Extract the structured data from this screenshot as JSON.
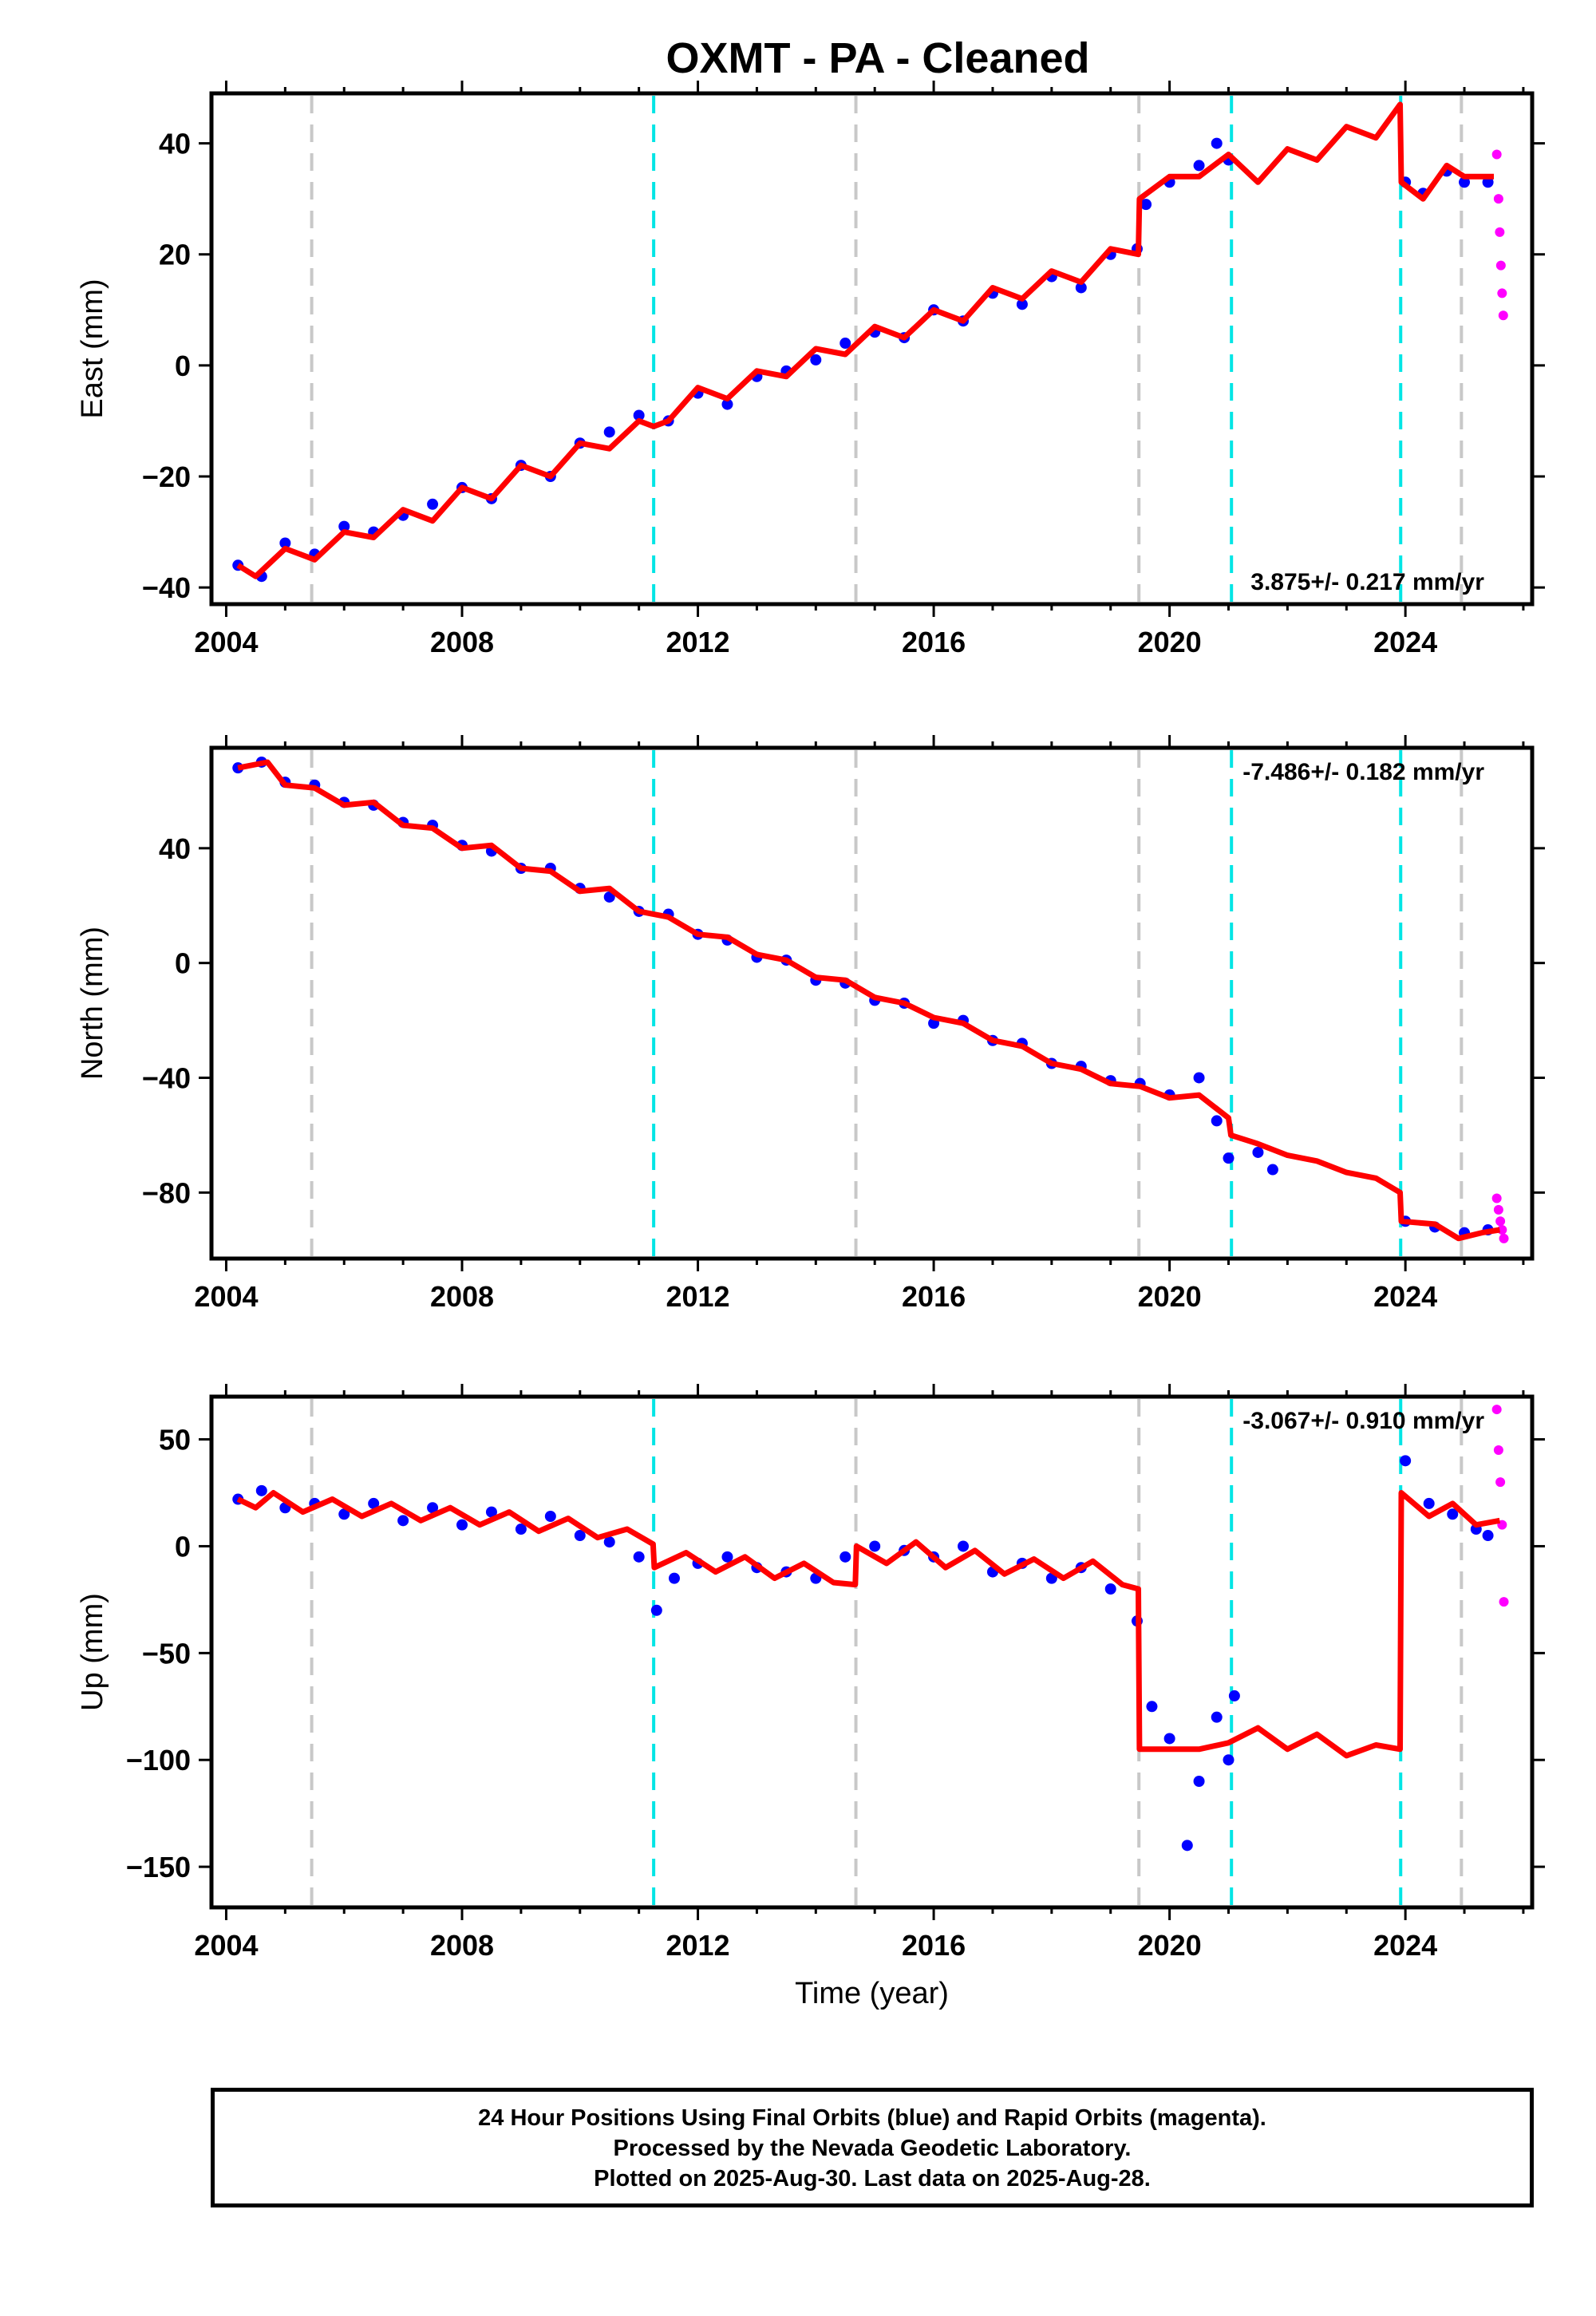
{
  "title": "OXMT  - PA - Cleaned",
  "x_axis": {
    "label": "Time (year)",
    "ticks": [
      2004,
      2008,
      2012,
      2016,
      2020,
      2024
    ],
    "range": [
      2003.75,
      2026.15
    ]
  },
  "colors": {
    "final_orbits": "#0000ff",
    "rapid_orbits": "#ff00ff",
    "model": "#ff0000",
    "equipment_change": "#c8c8c8",
    "earthquake": "#00e5e5"
  },
  "event_lines": [
    {
      "year": 2005.45,
      "kind": "equipment_change"
    },
    {
      "year": 2011.25,
      "kind": "earthquake"
    },
    {
      "year": 2014.68,
      "kind": "equipment_change"
    },
    {
      "year": 2019.48,
      "kind": "equipment_change"
    },
    {
      "year": 2021.05,
      "kind": "earthquake"
    },
    {
      "year": 2023.92,
      "kind": "earthquake"
    },
    {
      "year": 2024.95,
      "kind": "equipment_change"
    }
  ],
  "chart_data": [
    {
      "type": "scatter",
      "ylabel": "East (mm)",
      "ylim": [
        -43,
        49
      ],
      "yticks": [
        -40,
        -20,
        0,
        20,
        40
      ],
      "rate_text": "3.875+/- 0.217 mm/yr",
      "rate_position": "bottom-right",
      "series": [
        {
          "name": "Final Orbits",
          "type": "scatter",
          "role": "final_orbits",
          "x": [
            2004.2,
            2004.6,
            2005.0,
            2005.5,
            2006.0,
            2006.5,
            2007.0,
            2007.5,
            2008.0,
            2008.5,
            2009.0,
            2009.5,
            2010.0,
            2010.5,
            2011.0,
            2011.5,
            2012.0,
            2012.5,
            2013.0,
            2013.5,
            2014.0,
            2014.5,
            2015.0,
            2015.5,
            2016.0,
            2016.5,
            2017.0,
            2017.5,
            2018.0,
            2018.5,
            2019.0,
            2019.45,
            2019.6,
            2020.0,
            2020.5,
            2020.8,
            2021.0,
            2024.0,
            2024.3,
            2024.7,
            2025.0,
            2025.4
          ],
          "y": [
            -36,
            -38,
            -32,
            -34,
            -29,
            -30,
            -27,
            -25,
            -22,
            -24,
            -18,
            -20,
            -14,
            -12,
            -9,
            -10,
            -5,
            -7,
            -2,
            -1,
            1,
            4,
            6,
            5,
            10,
            8,
            13,
            11,
            16,
            14,
            20,
            21,
            29,
            33,
            36,
            40,
            37,
            33,
            31,
            35,
            33,
            33
          ]
        },
        {
          "name": "Rapid Orbits",
          "type": "scatter",
          "role": "rapid_orbits",
          "x": [
            2025.55,
            2025.58,
            2025.6,
            2025.62,
            2025.64,
            2025.66
          ],
          "y": [
            38,
            30,
            24,
            18,
            13,
            9
          ]
        },
        {
          "name": "Model",
          "type": "line",
          "role": "model",
          "x": [
            2004.2,
            2004.5,
            2005.0,
            2005.5,
            2006.0,
            2006.5,
            2007.0,
            2007.5,
            2008.0,
            2008.5,
            2009.0,
            2009.5,
            2010.0,
            2010.5,
            2011.0,
            2011.25,
            2011.5,
            2012.0,
            2012.5,
            2013.0,
            2013.5,
            2014.0,
            2014.5,
            2015.0,
            2015.5,
            2016.0,
            2016.5,
            2017.0,
            2017.5,
            2018.0,
            2018.5,
            2019.0,
            2019.47,
            2019.49,
            2020.0,
            2020.5,
            2021.0,
            2021.5,
            2022.0,
            2022.5,
            2023.0,
            2023.5,
            2023.91,
            2023.93,
            2024.3,
            2024.7,
            2025.0,
            2025.5
          ],
          "y": [
            -36,
            -38,
            -33,
            -35,
            -30,
            -31,
            -26,
            -28,
            -22,
            -24,
            -18,
            -20,
            -14,
            -15,
            -10,
            -11,
            -10,
            -4,
            -6,
            -1,
            -2,
            3,
            2,
            7,
            5,
            10,
            8,
            14,
            12,
            17,
            15,
            21,
            20,
            30,
            34,
            34,
            38,
            33,
            39,
            37,
            43,
            41,
            47,
            33,
            30,
            36,
            34,
            34
          ]
        }
      ]
    },
    {
      "type": "scatter",
      "ylabel": "North (mm)",
      "ylim": [
        -103,
        75
      ],
      "yticks": [
        -80,
        -40,
        0,
        40
      ],
      "rate_text": "-7.486+/- 0.182 mm/yr",
      "rate_position": "top-right",
      "series": [
        {
          "name": "Final Orbits",
          "type": "scatter",
          "role": "final_orbits",
          "x": [
            2004.2,
            2004.6,
            2005.0,
            2005.5,
            2006.0,
            2006.5,
            2007.0,
            2007.5,
            2008.0,
            2008.5,
            2009.0,
            2009.5,
            2010.0,
            2010.5,
            2011.0,
            2011.5,
            2012.0,
            2012.5,
            2013.0,
            2013.5,
            2014.0,
            2014.5,
            2015.0,
            2015.5,
            2016.0,
            2016.5,
            2017.0,
            2017.5,
            2018.0,
            2018.5,
            2019.0,
            2019.5,
            2020.0,
            2020.5,
            2020.8,
            2021.0,
            2021.5,
            2021.75,
            2024.0,
            2024.5,
            2025.0,
            2025.4
          ],
          "y": [
            68,
            70,
            63,
            62,
            56,
            55,
            49,
            48,
            41,
            39,
            33,
            33,
            26,
            23,
            18,
            17,
            10,
            8,
            2,
            1,
            -6,
            -7,
            -13,
            -14,
            -21,
            -20,
            -27,
            -28,
            -35,
            -36,
            -41,
            -42,
            -46,
            -40,
            -55,
            -68,
            -66,
            -72,
            -90,
            -92,
            -94,
            -93
          ]
        },
        {
          "name": "Rapid Orbits",
          "type": "scatter",
          "role": "rapid_orbits",
          "x": [
            2025.55,
            2025.58,
            2025.61,
            2025.64,
            2025.67
          ],
          "y": [
            -82,
            -86,
            -90,
            -93,
            -96
          ]
        },
        {
          "name": "Model",
          "type": "line",
          "role": "model",
          "x": [
            2004.2,
            2004.7,
            2005.0,
            2005.5,
            2006.0,
            2006.5,
            2007.0,
            2007.5,
            2008.0,
            2008.5,
            2009.0,
            2009.5,
            2010.0,
            2010.5,
            2011.0,
            2011.5,
            2012.0,
            2012.5,
            2013.0,
            2013.5,
            2014.0,
            2014.5,
            2015.0,
            2015.5,
            2016.0,
            2016.5,
            2017.0,
            2017.5,
            2018.0,
            2018.5,
            2019.0,
            2019.5,
            2020.0,
            2020.5,
            2021.0,
            2021.04,
            2021.5,
            2022.0,
            2022.5,
            2023.0,
            2023.5,
            2023.91,
            2023.93,
            2024.5,
            2024.9,
            2025.3,
            2025.6
          ],
          "y": [
            68,
            70,
            62,
            61,
            55,
            56,
            48,
            47,
            40,
            41,
            33,
            32,
            25,
            26,
            18,
            16,
            10,
            9,
            3,
            1,
            -5,
            -6,
            -12,
            -14,
            -19,
            -21,
            -27,
            -29,
            -35,
            -37,
            -42,
            -43,
            -47,
            -46,
            -54,
            -60,
            -63,
            -67,
            -69,
            -73,
            -75,
            -80,
            -90,
            -91,
            -96,
            -94,
            -93
          ]
        }
      ]
    },
    {
      "type": "scatter",
      "ylabel": "Up (mm)",
      "ylim": [
        -169,
        70
      ],
      "yticks": [
        -150,
        -100,
        -50,
        0,
        50
      ],
      "rate_text": "-3.067+/- 0.910 mm/yr",
      "rate_position": "top-right",
      "series": [
        {
          "name": "Final Orbits",
          "type": "scatter",
          "role": "final_orbits",
          "x": [
            2004.2,
            2004.6,
            2005.0,
            2005.5,
            2006.0,
            2006.5,
            2007.0,
            2007.5,
            2008.0,
            2008.5,
            2009.0,
            2009.5,
            2010.0,
            2010.5,
            2011.0,
            2011.3,
            2011.6,
            2012.0,
            2012.5,
            2013.0,
            2013.5,
            2014.0,
            2014.5,
            2015.0,
            2015.5,
            2016.0,
            2016.5,
            2017.0,
            2017.5,
            2018.0,
            2018.5,
            2019.0,
            2019.45,
            2019.7,
            2020.0,
            2020.3,
            2020.5,
            2020.8,
            2021.0,
            2021.1,
            2024.0,
            2024.4,
            2024.8,
            2025.2,
            2025.4
          ],
          "y": [
            22,
            26,
            18,
            20,
            15,
            20,
            12,
            18,
            10,
            16,
            8,
            14,
            5,
            2,
            -5,
            -30,
            -15,
            -8,
            -5,
            -10,
            -12,
            -15,
            -5,
            0,
            -2,
            -5,
            0,
            -12,
            -8,
            -15,
            -10,
            -20,
            -35,
            -75,
            -90,
            -140,
            -110,
            -80,
            -100,
            -70,
            40,
            20,
            15,
            8,
            5
          ]
        },
        {
          "name": "Rapid Orbits",
          "type": "scatter",
          "role": "rapid_orbits",
          "x": [
            2025.55,
            2025.58,
            2025.61,
            2025.64,
            2025.67
          ],
          "y": [
            64,
            45,
            30,
            10,
            -26
          ]
        },
        {
          "name": "Model",
          "type": "line",
          "role": "model",
          "x": [
            2004.2,
            2004.5,
            2004.8,
            2005.3,
            2005.8,
            2006.3,
            2006.8,
            2007.3,
            2007.8,
            2008.3,
            2008.8,
            2009.3,
            2009.8,
            2010.3,
            2010.8,
            2011.24,
            2011.26,
            2011.8,
            2012.3,
            2012.8,
            2013.3,
            2013.8,
            2014.3,
            2014.67,
            2014.69,
            2015.2,
            2015.7,
            2016.2,
            2016.7,
            2017.2,
            2017.7,
            2018.2,
            2018.7,
            2019.2,
            2019.47,
            2019.49,
            2020.0,
            2020.5,
            2021.0,
            2021.5,
            2022.0,
            2022.5,
            2023.0,
            2023.5,
            2023.91,
            2023.93,
            2024.4,
            2024.8,
            2025.2,
            2025.6
          ],
          "y": [
            22,
            18,
            25,
            16,
            22,
            14,
            20,
            12,
            18,
            10,
            16,
            7,
            13,
            4,
            8,
            1,
            -10,
            -3,
            -12,
            -5,
            -15,
            -8,
            -17,
            -18,
            0,
            -8,
            2,
            -10,
            -2,
            -13,
            -6,
            -15,
            -7,
            -18,
            -20,
            -95,
            -95,
            -95,
            -92,
            -85,
            -95,
            -88,
            -98,
            -93,
            -95,
            25,
            14,
            20,
            10,
            12
          ]
        }
      ]
    }
  ],
  "footer": {
    "line1": "24 Hour Positions Using Final Orbits (blue) and Rapid Orbits (magenta).",
    "line2": "Processed by the Nevada Geodetic Laboratory.",
    "line3": "Plotted on 2025-Aug-30. Last data on 2025-Aug-28."
  }
}
